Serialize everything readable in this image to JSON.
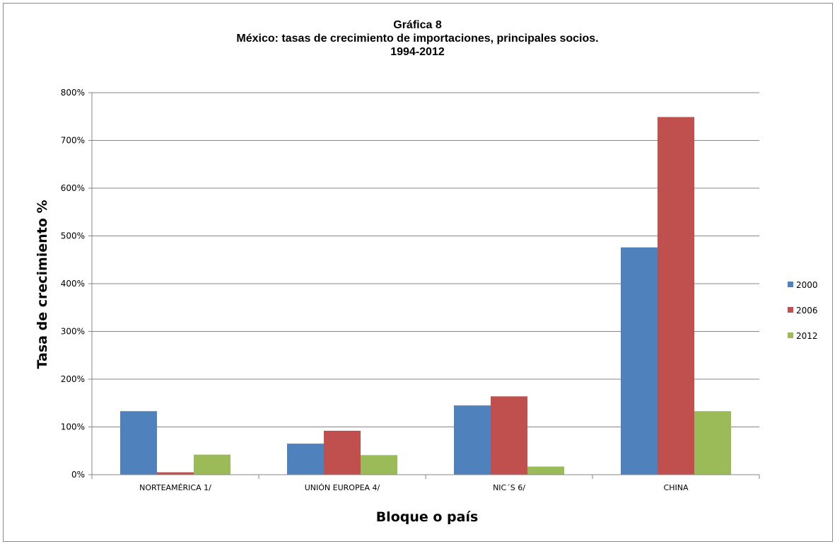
{
  "chart_data": {
    "type": "bar",
    "title_lines": [
      "Gráfica 8",
      "México: tasas de crecimiento de importaciones, principales socios.",
      "1994-2012"
    ],
    "xlabel": "Bloque o país",
    "ylabel": "Tasa de crecimiento %",
    "categories": [
      "NORTEAMÉRICA 1/",
      "UNIÓN EUROPEA 4/",
      "NIC´S 6/",
      "CHINA"
    ],
    "series": [
      {
        "name": "2000",
        "color": "#4f81bd",
        "values": [
          133,
          65,
          145,
          476
        ]
      },
      {
        "name": "2006",
        "color": "#c0504d",
        "values": [
          5,
          92,
          164,
          749
        ]
      },
      {
        "name": "2012",
        "color": "#9bbb59",
        "values": [
          42,
          41,
          17,
          133
        ]
      }
    ],
    "ylim": [
      0,
      800
    ],
    "yticks": [
      0,
      100,
      200,
      300,
      400,
      500,
      600,
      700,
      800
    ],
    "ytick_labels": [
      "0%",
      "100%",
      "200%",
      "300%",
      "400%",
      "500%",
      "600%",
      "700%",
      "800%"
    ],
    "grid": true,
    "legend_position": "right"
  }
}
